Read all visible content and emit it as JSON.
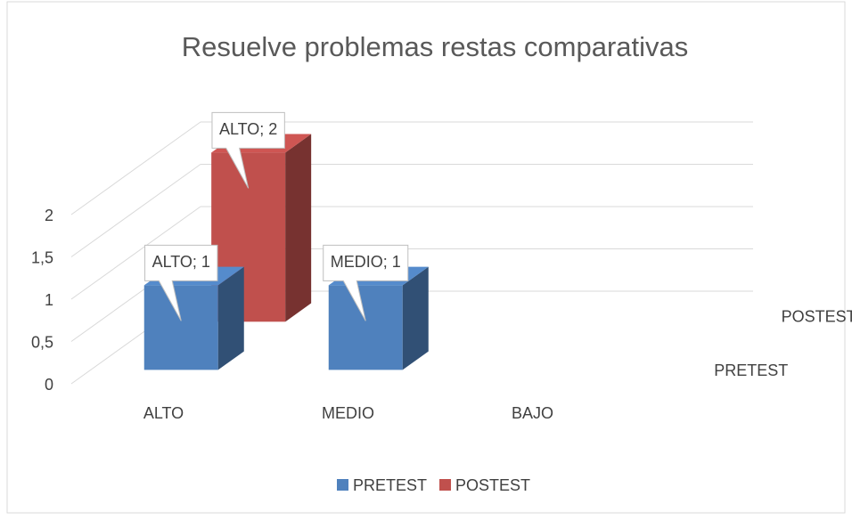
{
  "chart_data": {
    "type": "bar3d",
    "title": "Resuelve problemas restas comparativas",
    "categories": [
      "ALTO",
      "MEDIO",
      "BAJO"
    ],
    "series": [
      {
        "name": "PRETEST",
        "color": "#4f81bd",
        "values": [
          1,
          1,
          0
        ],
        "value_labels": [
          "ALTO; 1",
          "MEDIO; 1",
          null
        ]
      },
      {
        "name": "POSTEST",
        "color": "#c0504d",
        "values": [
          2,
          0,
          0
        ],
        "value_labels": [
          "ALTO; 2",
          null,
          null
        ]
      }
    ],
    "ylim": [
      0,
      2
    ],
    "yticks": [
      0,
      {
        "value": 0.5,
        "label": "0,5"
      },
      1,
      {
        "value": 1.5,
        "label": "1,5"
      },
      2
    ],
    "grid": true,
    "legend": "bottom"
  }
}
